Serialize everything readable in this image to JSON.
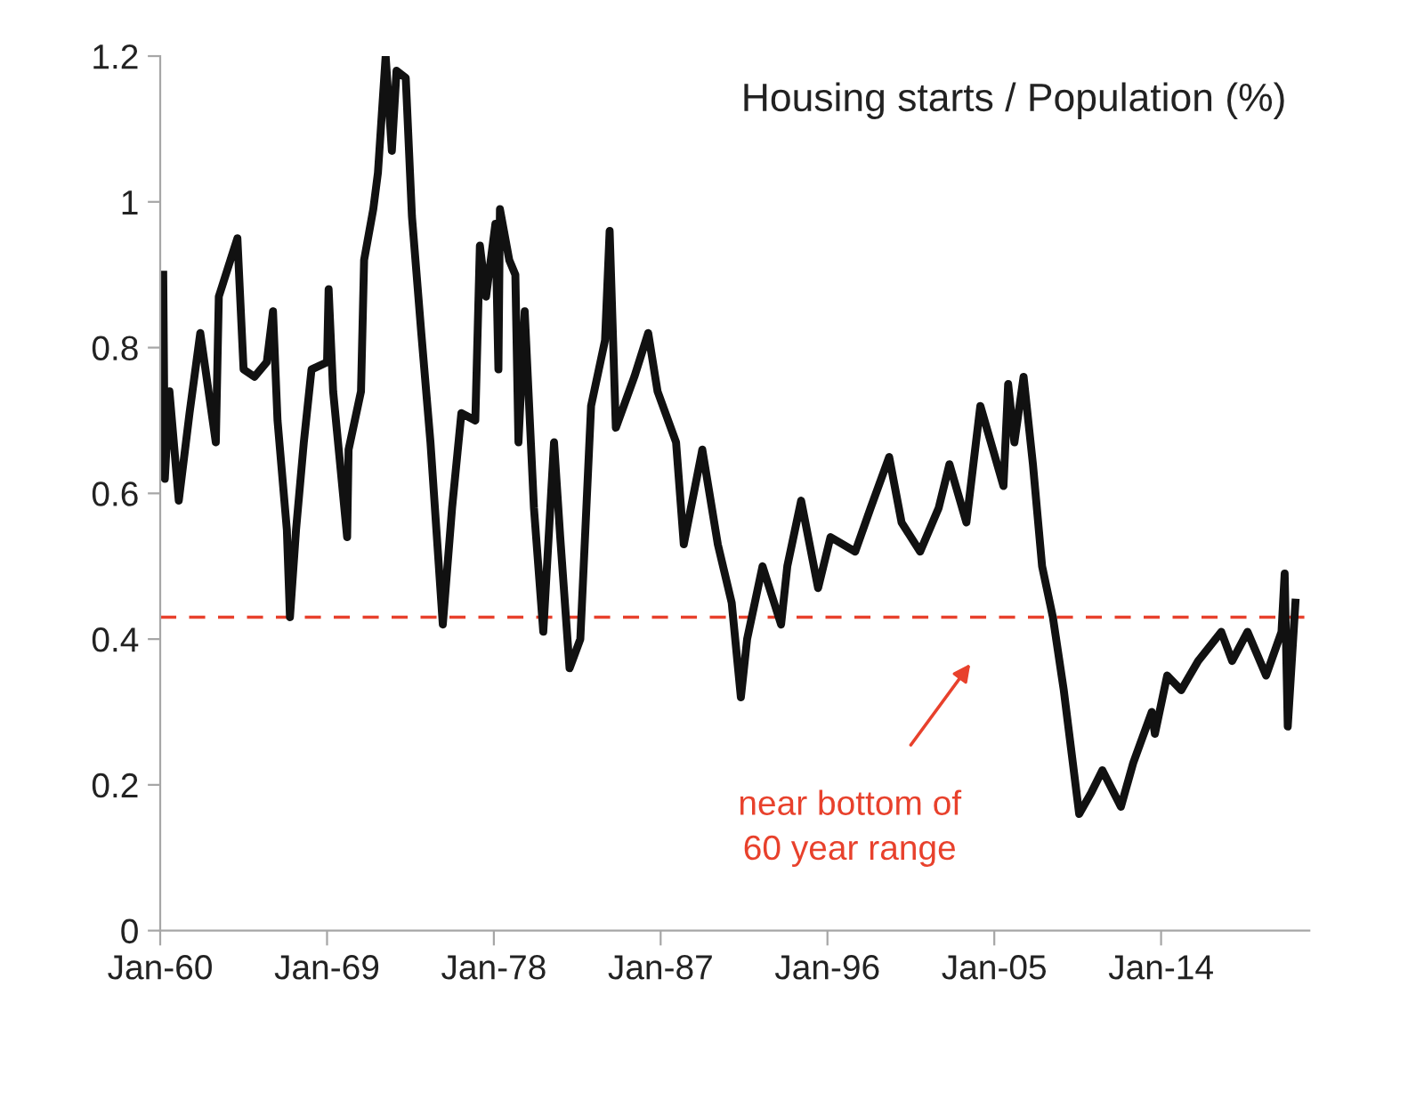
{
  "chart_data": {
    "type": "line",
    "title": "Housing starts / Population (%)",
    "x": [
      "1960-03",
      "1960-04",
      "1960-07",
      "1961-01",
      "1961-08",
      "1962-03",
      "1963-01",
      "1963-03",
      "1964-03",
      "1964-07",
      "1965-02",
      "1965-10",
      "1966-02",
      "1966-05",
      "1966-11",
      "1967-01",
      "1967-05",
      "1967-10",
      "1968-03",
      "1969-01",
      "1969-02",
      "1969-05",
      "1970-02",
      "1970-03",
      "1970-11",
      "1971-01",
      "1971-07",
      "1971-10",
      "1972-03",
      "1972-07",
      "1972-10",
      "1973-04",
      "1973-08",
      "1974-02",
      "1974-08",
      "1975-04",
      "1975-10",
      "1976-04",
      "1977-01",
      "1977-04",
      "1977-08",
      "1978-02",
      "1978-04",
      "1978-05",
      "1978-11",
      "1979-03",
      "1979-05",
      "1979-09",
      "1980-03",
      "1980-09",
      "1981-04",
      "1981-08",
      "1982-02",
      "1982-09",
      "1983-04",
      "1984-01",
      "1984-04",
      "1984-08",
      "1985-08",
      "1986-05",
      "1986-11",
      "1987-11",
      "1988-04",
      "1989-04",
      "1990-02",
      "1990-11",
      "1991-05",
      "1991-09",
      "1992-07",
      "1993-07",
      "1993-11",
      "1994-08",
      "1995-07",
      "1996-03",
      "1997-07",
      "1998-05",
      "1999-05",
      "2000-01",
      "2001-01",
      "2002-01",
      "2002-08",
      "2003-07",
      "2004-04",
      "2005-07",
      "2005-10",
      "2006-02",
      "2006-08",
      "2007-02",
      "2007-08",
      "2008-03",
      "2008-10",
      "2009-08",
      "2010-04",
      "2010-11",
      "2011-11",
      "2012-07",
      "2013-07",
      "2013-09",
      "2014-05",
      "2015-02",
      "2016-01",
      "2017-04",
      "2017-11",
      "2018-09",
      "2019-09",
      "2020-07",
      "2020-09",
      "2020-11",
      "2021-04"
    ],
    "series": [
      {
        "color": "#111111",
        "values": [
          0.9,
          0.62,
          0.74,
          0.59,
          0.71,
          0.82,
          0.67,
          0.87,
          0.95,
          0.77,
          0.76,
          0.78,
          0.85,
          0.7,
          0.55,
          0.43,
          0.55,
          0.67,
          0.77,
          0.78,
          0.88,
          0.74,
          0.54,
          0.66,
          0.74,
          0.92,
          0.99,
          1.04,
          1.2,
          1.07,
          1.18,
          1.17,
          0.98,
          0.82,
          0.67,
          0.42,
          0.58,
          0.71,
          0.7,
          0.94,
          0.87,
          0.97,
          0.77,
          0.99,
          0.92,
          0.9,
          0.67,
          0.85,
          0.58,
          0.41,
          0.67,
          0.54,
          0.36,
          0.4,
          0.72,
          0.81,
          0.96,
          0.69,
          0.76,
          0.82,
          0.74,
          0.67,
          0.53,
          0.66,
          0.53,
          0.45,
          0.32,
          0.4,
          0.5,
          0.42,
          0.5,
          0.59,
          0.47,
          0.54,
          0.52,
          0.58,
          0.65,
          0.56,
          0.52,
          0.58,
          0.64,
          0.56,
          0.72,
          0.61,
          0.75,
          0.67,
          0.76,
          0.64,
          0.5,
          0.43,
          0.33,
          0.16,
          0.19,
          0.22,
          0.17,
          0.23,
          0.3,
          0.27,
          0.35,
          0.33,
          0.37,
          0.41,
          0.37,
          0.41,
          0.35,
          0.41,
          0.49,
          0.28,
          0.45
        ]
      }
    ],
    "xlim": [
      "1960-01",
      "2022-01"
    ],
    "xticks": [
      {
        "value": "1960-01",
        "label": "Jan-60"
      },
      {
        "value": "1969-01",
        "label": "Jan-69"
      },
      {
        "value": "1978-01",
        "label": "Jan-78"
      },
      {
        "value": "1987-01",
        "label": "Jan-87"
      },
      {
        "value": "1996-01",
        "label": "Jan-96"
      },
      {
        "value": "2005-01",
        "label": "Jan-05"
      },
      {
        "value": "2014-01",
        "label": "Jan-14"
      }
    ],
    "ylim": [
      0,
      1.2
    ],
    "yticks": [
      0,
      0.2,
      0.4,
      0.6,
      0.8,
      1,
      1.2
    ],
    "ref_lines": [
      {
        "axis": "y",
        "value": 0.43,
        "color": "#e8412c",
        "line_style": "dashed"
      }
    ],
    "annotations": [
      "near bottom of\n60 year range"
    ],
    "grid": false,
    "legend": false,
    "marker": "none",
    "line_style": "solid"
  }
}
